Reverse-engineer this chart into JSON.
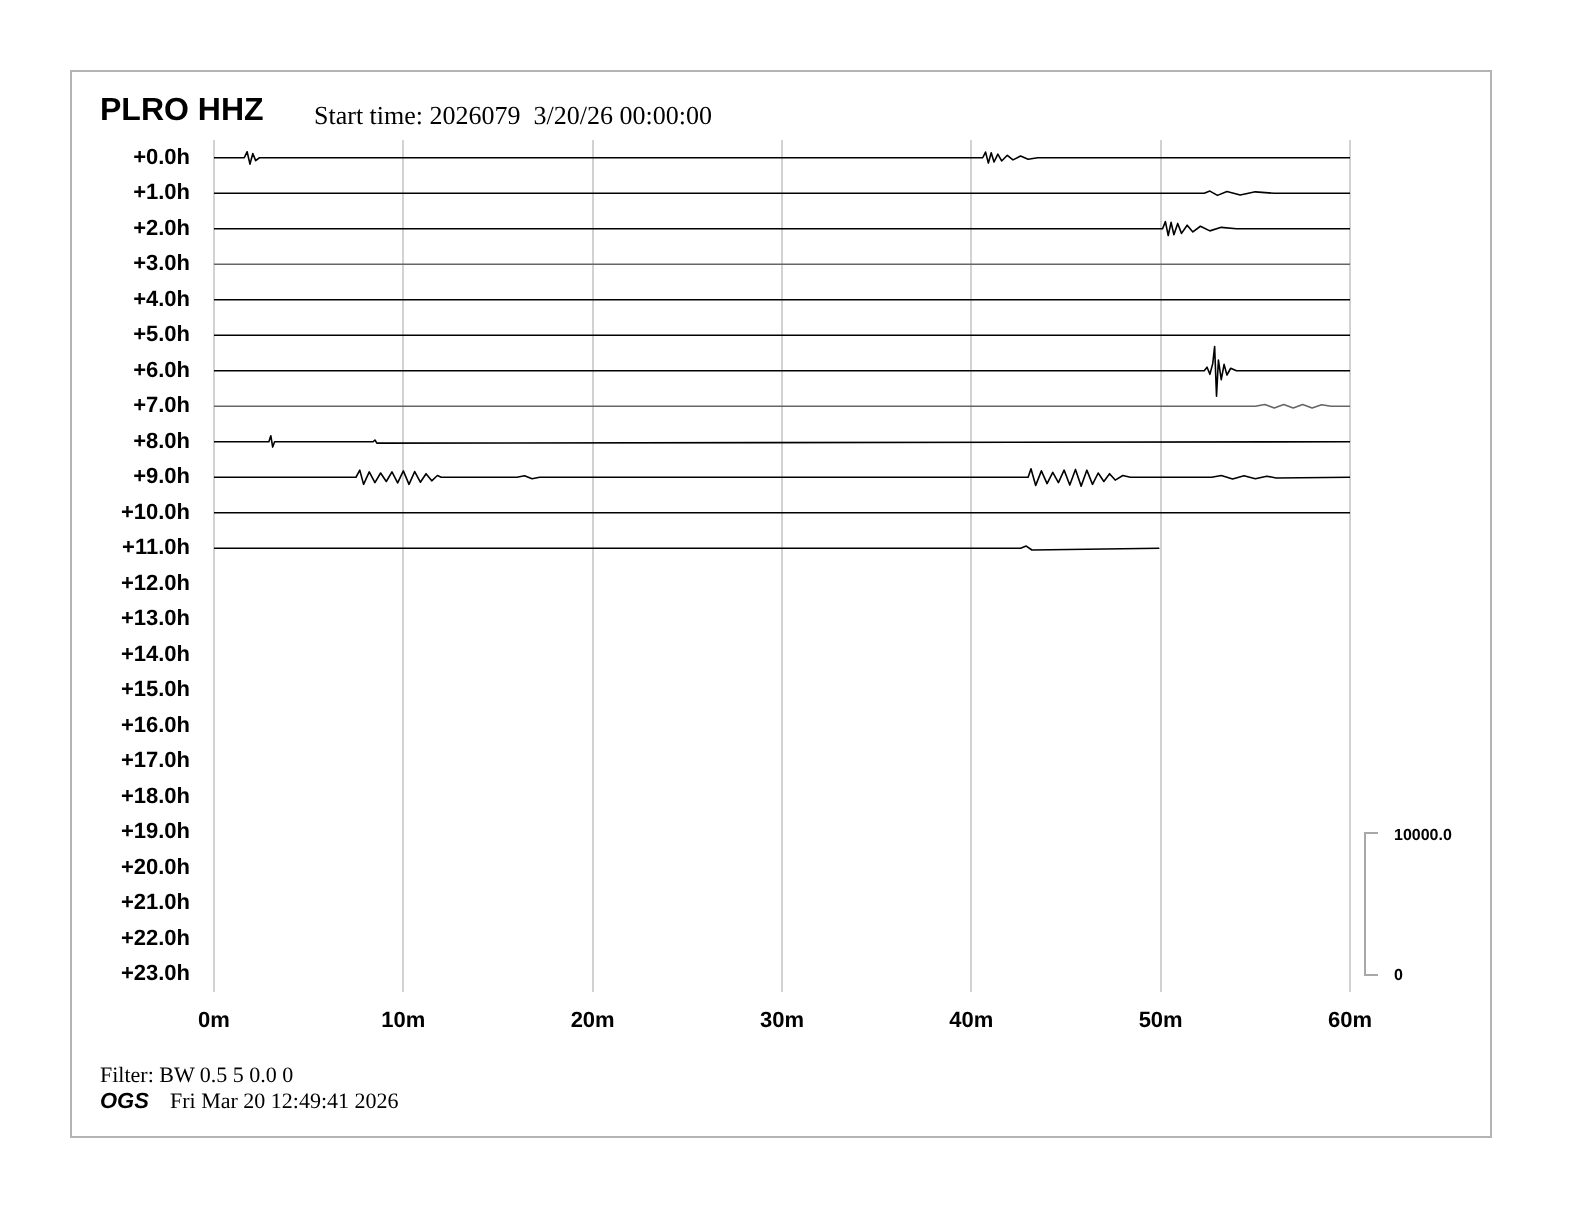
{
  "chart_data": {
    "type": "line",
    "title": "PLRO HHZ",
    "subtitle": "Start time: 2026079  3/20/26 00:00:00",
    "annotations": [
      "Filter: BW 0.5 5 0.0 0",
      "OGS",
      "Fri Mar 20 12:49:41 2026",
      "10000.0",
      "0"
    ],
    "xlim": [
      0,
      60
    ],
    "xticks": [
      {
        "value": 0,
        "label": "0m"
      },
      {
        "value": 10,
        "label": "10m"
      },
      {
        "value": 20,
        "label": "20m"
      },
      {
        "value": 30,
        "label": "30m"
      },
      {
        "value": 40,
        "label": "40m"
      },
      {
        "value": 50,
        "label": "50m"
      },
      {
        "value": 60,
        "label": "60m"
      }
    ],
    "ylim": [
      23.5,
      -0.5
    ],
    "yticks": [
      {
        "value": 0,
        "label": "+0.0h"
      },
      {
        "value": 1,
        "label": "+1.0h"
      },
      {
        "value": 2,
        "label": "+2.0h"
      },
      {
        "value": 3,
        "label": "+3.0h"
      },
      {
        "value": 4,
        "label": "+4.0h"
      },
      {
        "value": 5,
        "label": "+5.0h"
      },
      {
        "value": 6,
        "label": "+6.0h"
      },
      {
        "value": 7,
        "label": "+7.0h"
      },
      {
        "value": 8,
        "label": "+8.0h"
      },
      {
        "value": 9,
        "label": "+9.0h"
      },
      {
        "value": 10,
        "label": "+10.0h"
      },
      {
        "value": 11,
        "label": "+11.0h"
      },
      {
        "value": 12,
        "label": "+12.0h"
      },
      {
        "value": 13,
        "label": "+13.0h"
      },
      {
        "value": 14,
        "label": "+14.0h"
      },
      {
        "value": 15,
        "label": "+15.0h"
      },
      {
        "value": 16,
        "label": "+16.0h"
      },
      {
        "value": 17,
        "label": "+17.0h"
      },
      {
        "value": 18,
        "label": "+18.0h"
      },
      {
        "value": 19,
        "label": "+19.0h"
      },
      {
        "value": 20,
        "label": "+20.0h"
      },
      {
        "value": 21,
        "label": "+21.0h"
      },
      {
        "value": 22,
        "label": "+22.0h"
      },
      {
        "value": 23,
        "label": "+23.0h"
      }
    ],
    "grid": "x",
    "legend": false,
    "marker": "none",
    "line_style": "solid",
    "series": [
      {
        "color": "#000000",
        "x": [
          0,
          1.6,
          1.75,
          1.9,
          2.05,
          2.2,
          2.4,
          40.6,
          40.75,
          40.9,
          41.05,
          41.2,
          41.4,
          41.6,
          41.9,
          42.2,
          42.6,
          43.0,
          43.5,
          60
        ],
        "values": [
          0,
          0,
          -0.17,
          0.18,
          -0.12,
          0.08,
          0,
          0,
          -0.16,
          0.15,
          -0.14,
          0.12,
          -0.1,
          0.09,
          -0.07,
          0.06,
          -0.05,
          0.04,
          0,
          0
        ]
      },
      {
        "color": "#000000",
        "x": [
          0,
          52.3,
          52.6,
          53.0,
          53.5,
          54.2,
          55,
          56,
          60
        ],
        "values": [
          1,
          1,
          0.94,
          1.06,
          0.95,
          1.05,
          0.96,
          1,
          1
        ]
      },
      {
        "color": "#000000",
        "x": [
          0,
          50.1,
          50.25,
          50.4,
          50.55,
          50.7,
          50.9,
          51.1,
          51.4,
          51.7,
          52.1,
          52.6,
          53.2,
          54,
          60
        ],
        "values": [
          2,
          2,
          1.8,
          2.19,
          1.82,
          2.17,
          1.85,
          2.13,
          1.9,
          2.09,
          1.93,
          2.06,
          1.96,
          2,
          2
        ]
      },
      {
        "color": "#666666",
        "x": [
          0,
          60
        ],
        "values": [
          3,
          3
        ]
      },
      {
        "color": "#000000",
        "x": [
          0,
          60
        ],
        "values": [
          4,
          4
        ]
      },
      {
        "color": "#000000",
        "x": [
          0,
          60
        ],
        "values": [
          5,
          5
        ]
      },
      {
        "color": "#000000",
        "x": [
          0,
          52.3,
          52.45,
          52.6,
          52.75,
          52.85,
          52.95,
          53.05,
          53.2,
          53.35,
          53.5,
          53.7,
          54,
          60
        ],
        "values": [
          6,
          6,
          5.9,
          6.1,
          5.8,
          5.32,
          6.72,
          5.7,
          6.25,
          5.82,
          6.12,
          5.93,
          6,
          6
        ]
      },
      {
        "color": "#666666",
        "x": [
          0,
          55,
          55.5,
          56,
          56.5,
          57,
          57.5,
          58,
          58.5,
          59,
          60
        ],
        "values": [
          7,
          7,
          6.95,
          7.05,
          6.95,
          7.05,
          6.95,
          7.05,
          6.96,
          7,
          7
        ]
      },
      {
        "color": "#000000",
        "x": [
          0,
          2.9,
          3.0,
          3.1,
          3.2,
          8.4,
          8.5,
          8.6,
          60
        ],
        "values": [
          8,
          8,
          7.83,
          8.15,
          8,
          8,
          7.95,
          8.04,
          8
        ]
      },
      {
        "color": "#000000",
        "x": [
          0,
          7.5,
          7.7,
          7.9,
          8.2,
          8.5,
          8.8,
          9.1,
          9.4,
          9.7,
          10.0,
          10.3,
          10.6,
          10.9,
          11.2,
          11.5,
          11.8,
          12.0,
          16.0,
          16.4,
          16.8,
          17.2,
          43.0,
          43.15,
          43.4,
          43.7,
          44.0,
          44.3,
          44.6,
          44.9,
          45.2,
          45.5,
          45.8,
          46.1,
          46.4,
          46.7,
          47.0,
          47.3,
          47.6,
          48.0,
          48.4,
          52.7,
          53.2,
          53.8,
          54.4,
          55.0,
          55.6,
          56.1,
          60
        ],
        "values": [
          9,
          9,
          8.8,
          9.2,
          8.85,
          9.15,
          8.88,
          9.12,
          8.85,
          9.16,
          8.82,
          9.2,
          8.84,
          9.14,
          8.9,
          9.1,
          8.95,
          9,
          9,
          8.96,
          9.04,
          9,
          9,
          8.76,
          9.23,
          8.82,
          9.18,
          8.86,
          9.15,
          8.8,
          9.22,
          8.78,
          9.25,
          8.8,
          9.2,
          8.88,
          9.12,
          8.9,
          9.08,
          8.95,
          9,
          9,
          8.95,
          9.05,
          8.96,
          9.04,
          8.97,
          9.02,
          9
        ]
      },
      {
        "color": "#000000",
        "x": [
          0,
          60
        ],
        "values": [
          10,
          10
        ]
      },
      {
        "color": "#000000",
        "x": [
          0,
          42.6,
          42.9,
          43.2,
          49.9
        ],
        "values": [
          11,
          11,
          10.94,
          11.05,
          11
        ]
      }
    ]
  }
}
